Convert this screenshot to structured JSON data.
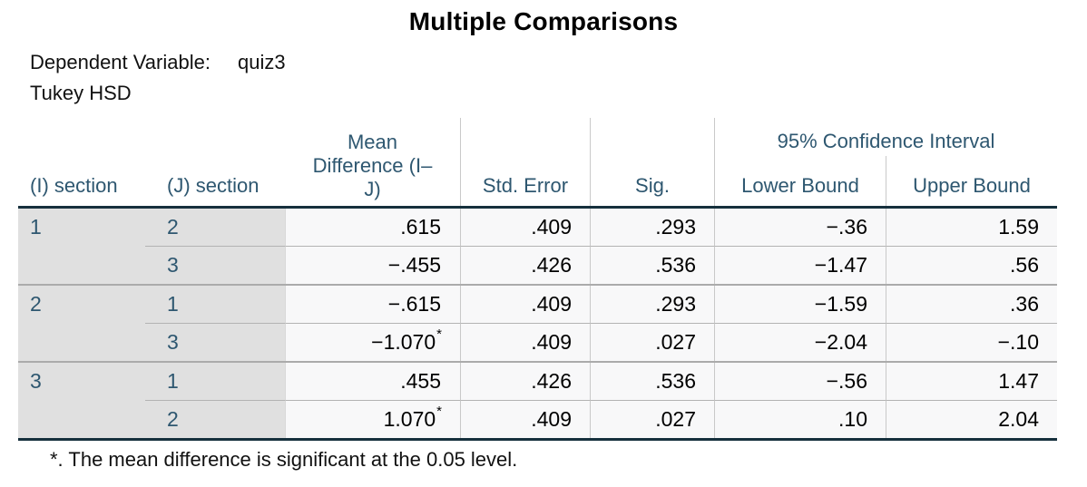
{
  "chart_data": {
    "type": "table",
    "title": "Multiple Comparisons",
    "dependent_variable_label": "Dependent Variable:",
    "dependent_variable": "quiz3",
    "method": "Tukey HSD",
    "headers": {
      "i": "(I) section",
      "j": "(J) section",
      "mean_diff": "Mean\nDifference (I–\nJ)",
      "std_error": "Std. Error",
      "sig": "Sig.",
      "ci": "95% Confidence Interval",
      "ci_lower": "Lower Bound",
      "ci_upper": "Upper Bound"
    },
    "groups": [
      {
        "i": "1",
        "rows": [
          {
            "j": "2",
            "mean": ".615",
            "star": "",
            "se": ".409",
            "sig": ".293",
            "lower": "−.36",
            "upper": "1.59"
          },
          {
            "j": "3",
            "mean": "−.455",
            "star": "",
            "se": ".426",
            "sig": ".536",
            "lower": "−1.47",
            "upper": ".56"
          }
        ]
      },
      {
        "i": "2",
        "rows": [
          {
            "j": "1",
            "mean": "−.615",
            "star": "",
            "se": ".409",
            "sig": ".293",
            "lower": "−1.59",
            "upper": ".36"
          },
          {
            "j": "3",
            "mean": "−1.070",
            "star": "*",
            "se": ".409",
            "sig": ".027",
            "lower": "−2.04",
            "upper": "−.10"
          }
        ]
      },
      {
        "i": "3",
        "rows": [
          {
            "j": "1",
            "mean": ".455",
            "star": "",
            "se": ".426",
            "sig": ".536",
            "lower": "−.56",
            "upper": "1.47"
          },
          {
            "j": "2",
            "mean": "1.070",
            "star": "*",
            "se": ".409",
            "sig": ".027",
            "lower": ".10",
            "upper": "2.04"
          }
        ]
      }
    ],
    "footnote": "*. The mean difference is significant at the 0.05 level.",
    "colors": {
      "header_text": "#2e5770",
      "label_column_bg": "#e0e0e0",
      "value_cell_bg": "#f8f8f9",
      "dark_border": "#16303d",
      "column_divider": "#c9c9c9",
      "group_separator": "#ababab",
      "subrow_line": "#b3b3b3"
    }
  }
}
